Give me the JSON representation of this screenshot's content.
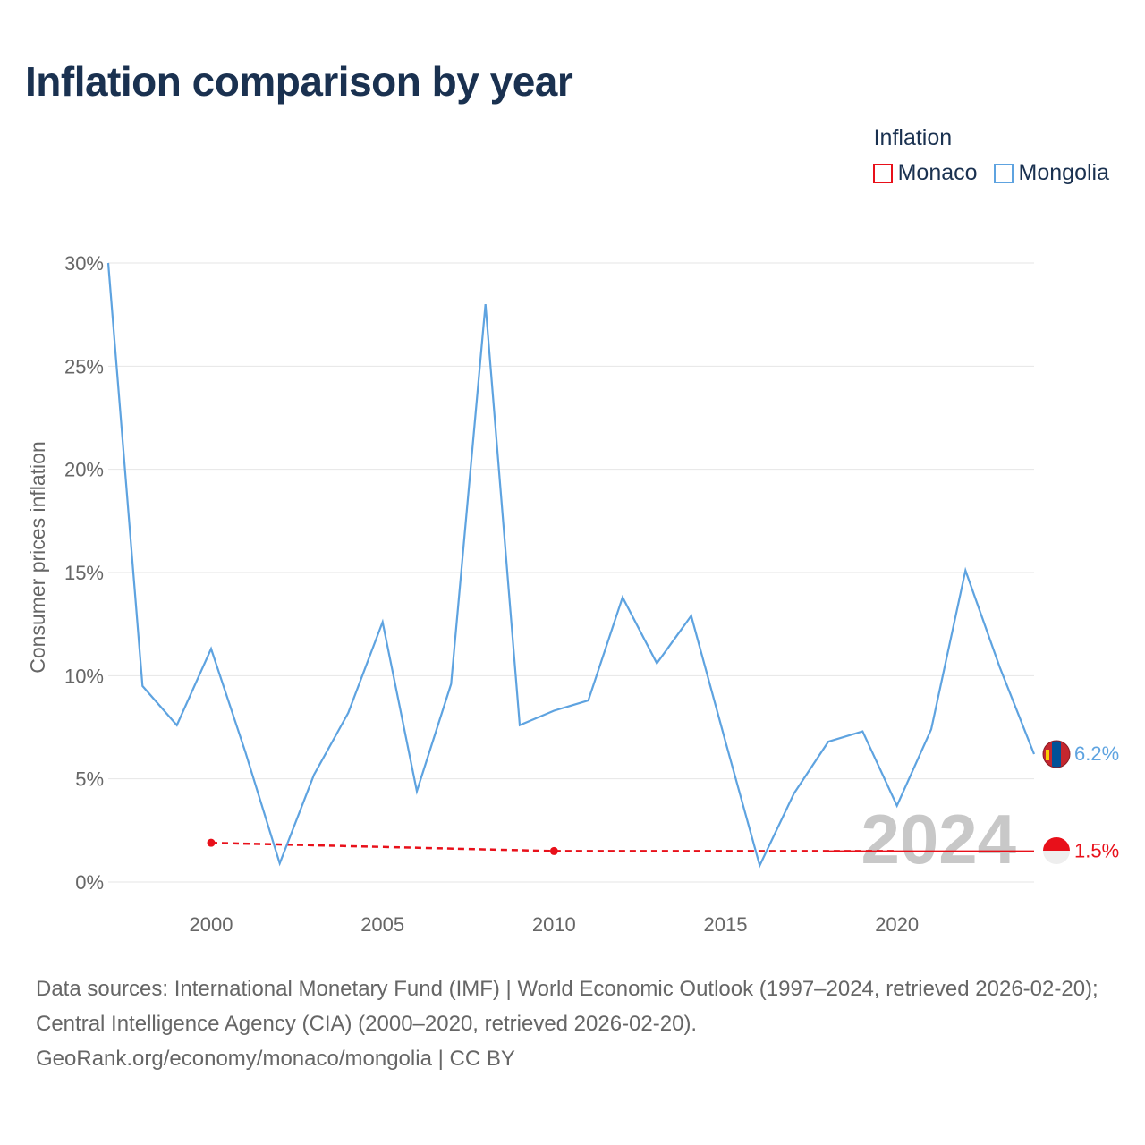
{
  "title": "Inflation comparison by year",
  "legend": {
    "title": "Inflation",
    "items": [
      {
        "label": "Monaco",
        "color": "#e8101a"
      },
      {
        "label": "Mongolia",
        "color": "#5ea3e0"
      }
    ]
  },
  "chart_data": {
    "type": "line",
    "title": "Inflation comparison by year",
    "xlabel": "",
    "ylabel": "Consumer prices inflation",
    "xlim": [
      1997,
      2024
    ],
    "ylim": [
      0,
      30
    ],
    "x_ticks": [
      2000,
      2005,
      2010,
      2015,
      2020
    ],
    "y_ticks": [
      0,
      5,
      10,
      15,
      20,
      25,
      30
    ],
    "y_tick_labels": [
      "0%",
      "5%",
      "10%",
      "15%",
      "20%",
      "25%",
      "30%"
    ],
    "grid": true,
    "watermark_year": "2024",
    "series": [
      {
        "name": "Mongolia",
        "color": "#5ea3e0",
        "style": "solid",
        "end_label": "6.2%",
        "points": [
          [
            1997,
            30.0
          ],
          [
            1998,
            9.5
          ],
          [
            1999,
            7.6
          ],
          [
            2000,
            11.3
          ],
          [
            2001,
            6.3
          ],
          [
            2002,
            0.9
          ],
          [
            2003,
            5.2
          ],
          [
            2004,
            8.2
          ],
          [
            2005,
            12.6
          ],
          [
            2006,
            4.4
          ],
          [
            2007,
            9.6
          ],
          [
            2008,
            28.0
          ],
          [
            2009,
            7.6
          ],
          [
            2010,
            8.3
          ],
          [
            2011,
            8.8
          ],
          [
            2012,
            13.8
          ],
          [
            2013,
            10.6
          ],
          [
            2014,
            12.9
          ],
          [
            2015,
            6.8
          ],
          [
            2016,
            0.8
          ],
          [
            2017,
            4.3
          ],
          [
            2018,
            6.8
          ],
          [
            2019,
            7.3
          ],
          [
            2020,
            3.7
          ],
          [
            2021,
            7.4
          ],
          [
            2022,
            15.1
          ],
          [
            2023,
            10.4
          ],
          [
            2024,
            6.2
          ]
        ]
      },
      {
        "name": "Monaco",
        "color": "#e8101a",
        "style": "dashed",
        "end_label": "1.5%",
        "markers": [
          [
            2000,
            1.9
          ],
          [
            2010,
            1.5
          ]
        ],
        "points": [
          [
            2000,
            1.9
          ],
          [
            2010,
            1.5
          ],
          [
            2020,
            1.5
          ]
        ],
        "solid_points": [
          [
            2018,
            1.5
          ],
          [
            2024,
            1.5
          ]
        ]
      }
    ]
  },
  "footer": {
    "sources": "Data sources: International Monetary Fund (IMF) | World Economic Outlook (1997–2024, retrieved 2026-02-20); Central Intelligence Agency (CIA) (2000–2020, retrieved 2026-02-20).",
    "credit": "GeoRank.org/economy/monaco/mongolia | CC BY"
  }
}
